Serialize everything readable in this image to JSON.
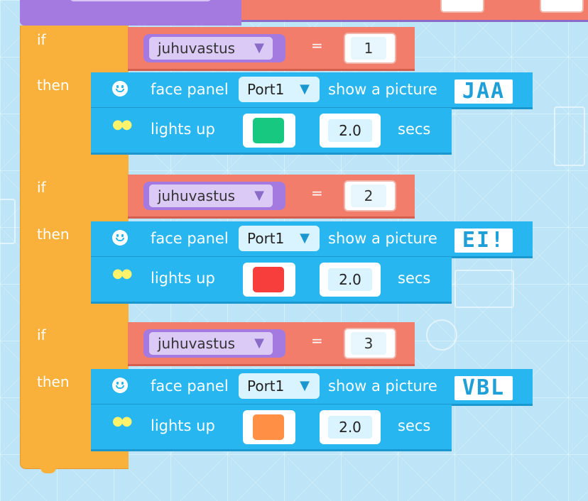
{
  "blocks": [
    {
      "if_label": "if",
      "then_label": "then",
      "condition": {
        "variable": "juhuvastus",
        "operator": "=",
        "value": "1"
      },
      "face": {
        "label": "face panel",
        "port": "Port1",
        "show_label": "show a picture",
        "picture": "JAA"
      },
      "lights": {
        "label": "lights up",
        "color": "#17c980",
        "duration": "2.0",
        "unit": "secs"
      }
    },
    {
      "if_label": "if",
      "then_label": "then",
      "condition": {
        "variable": "juhuvastus",
        "operator": "=",
        "value": "2"
      },
      "face": {
        "label": "face panel",
        "port": "Port1",
        "show_label": "show a picture",
        "picture": "EI!"
      },
      "lights": {
        "label": "lights up",
        "color": "#f83d3d",
        "duration": "2.0",
        "unit": "secs"
      }
    },
    {
      "if_label": "if",
      "then_label": "then",
      "condition": {
        "variable": "juhuvastus",
        "operator": "=",
        "value": "3"
      },
      "face": {
        "label": "face panel",
        "port": "Port1",
        "show_label": "show a picture",
        "picture": "VBL"
      },
      "lights": {
        "label": "lights up",
        "color": "#ff8f45",
        "duration": "2.0",
        "unit": "secs"
      }
    }
  ],
  "icons": {
    "face": "smiley-icon",
    "lights": "bulbs-icon",
    "dropdown": "triangle-down-icon"
  },
  "colors": {
    "if_block": "#f9b13b",
    "condition": "#f37d6b",
    "variable": "#a57ae0",
    "statement": "#27b6f0"
  }
}
